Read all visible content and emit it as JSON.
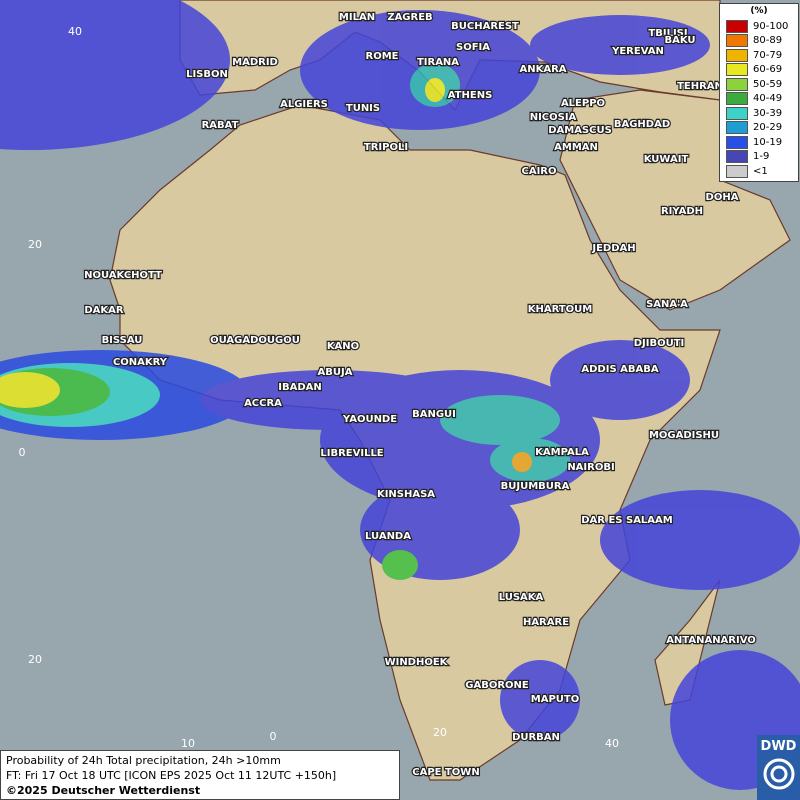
{
  "legend": {
    "title": "(%)",
    "entries": [
      {
        "label": "90-100",
        "color": "#c80000"
      },
      {
        "label": "80-89",
        "color": "#f07800"
      },
      {
        "label": "70-79",
        "color": "#f0b400"
      },
      {
        "label": "60-69",
        "color": "#e8e820"
      },
      {
        "label": "50-59",
        "color": "#8cd23c"
      },
      {
        "label": "40-49",
        "color": "#3caa3c"
      },
      {
        "label": "30-39",
        "color": "#3cd2c8"
      },
      {
        "label": "20-29",
        "color": "#1e9ed2"
      },
      {
        "label": "10-19",
        "color": "#2850e6"
      },
      {
        "label": "1-9",
        "color": "#4646b4"
      },
      {
        "label": "<1",
        "color": "#cccccc"
      }
    ]
  },
  "coords": [
    40,
    20,
    0,
    20,
    10,
    0,
    20,
    40
  ],
  "cities": [
    "MILAN",
    "ZAGREB",
    "BUCHAREST",
    "TBILISI",
    "BAKU",
    "LISBON",
    "MADRID",
    "ROME",
    "SOFIA",
    "TIRANA",
    "ANKARA",
    "YEREVAN",
    "TEHRAN",
    "ALGIERS",
    "TUNIS",
    "ATHENS",
    "ALEPPO",
    "RABAT",
    "NICOSIA",
    "BAGHDAD",
    "TRIPOLI",
    "DAMASCUS",
    "AMMAN",
    "KUWAIT",
    "CAIRO",
    "DOHA",
    "RIYADH",
    "JEDDAH",
    "NOUAKCHOTT",
    "DAKAR",
    "KHARTOUM",
    "SANA'A",
    "BISSAU",
    "OUAGADOUGOU",
    "KANO",
    "DJIBOUTI",
    "CONAKRY",
    "ABUJA",
    "ADDIS ABABA",
    "IBADAN",
    "ACCRA",
    "YAOUNDE",
    "BANGUI",
    "MOGADISHU",
    "LIBREVILLE",
    "KAMPALA",
    "NAIROBI",
    "BUJUMBURA",
    "KINSHASA",
    "DAR ES SALAAM",
    "LUANDA",
    "LUSAKA",
    "HARARE",
    "ANTANANARIVO",
    "WINDHOEK",
    "GABORONE",
    "MAPUTO",
    "DURBAN",
    "CAPE TOWN"
  ],
  "footer": {
    "line1": "Probability of 24h Total precipitation, 24h >10mm",
    "line2": "FT: Fri 17 Oct 18 UTC [ICON EPS 2025 Oct 11 12UTC +150h]",
    "line3": "©2025 Deutscher Wetterdienst"
  },
  "logo": "DWD"
}
